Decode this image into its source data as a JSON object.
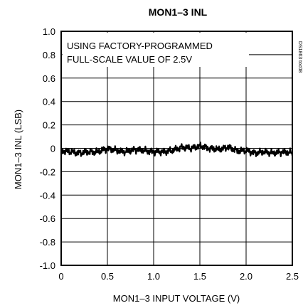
{
  "chart_data": {
    "type": "line",
    "title": "MON1–3 INL",
    "xlabel": "MON1–3 INPUT VOLTAGE (V)",
    "ylabel": "MON1–3 INL (LSB)",
    "xlim": [
      0,
      2.5
    ],
    "ylim": [
      -1.0,
      1.0
    ],
    "x_ticks": [
      "0",
      "0.5",
      "1.0",
      "1.5",
      "2.0",
      "2.5"
    ],
    "x_tick_values": [
      0,
      0.5,
      1.0,
      1.5,
      2.0,
      2.5
    ],
    "y_ticks": [
      "1.0",
      "0.8",
      "0.6",
      "0.4",
      "0.2",
      "0",
      "-0.2",
      "-0.4",
      "-0.6",
      "-0.8",
      "-1.0"
    ],
    "y_tick_values": [
      1.0,
      0.8,
      0.6,
      0.4,
      0.2,
      0,
      -0.2,
      -0.4,
      -0.6,
      -0.8,
      -1.0
    ],
    "grid": true,
    "annotation": [
      "USING FACTORY-PROGRAMMED",
      "FULL-SCALE VALUE OF 2.5V"
    ],
    "watermark": "DS1863 toc08",
    "series": [
      {
        "x": [
          0,
          0.1,
          0.2,
          0.3,
          0.4,
          0.5,
          0.6,
          0.7,
          0.8,
          0.9,
          1.0,
          1.1,
          1.2,
          1.3,
          1.4,
          1.5,
          1.6,
          1.7,
          1.8,
          1.9,
          2.0,
          2.1,
          2.2,
          2.3,
          2.4,
          2.5
        ],
        "y": [
          -0.02,
          -0.03,
          -0.04,
          -0.03,
          -0.03,
          0.0,
          -0.02,
          -0.03,
          -0.01,
          -0.02,
          -0.03,
          -0.03,
          -0.02,
          0.01,
          0.0,
          0.02,
          0.0,
          -0.01,
          0.01,
          -0.02,
          -0.02,
          -0.04,
          -0.03,
          -0.04,
          -0.03,
          -0.04
        ],
        "color": "#000000"
      }
    ]
  }
}
